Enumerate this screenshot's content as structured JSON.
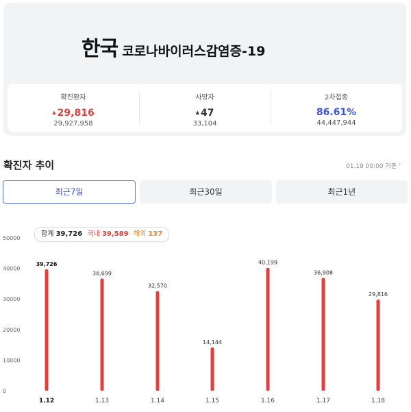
{
  "header": {
    "title_main": "한국",
    "title_sub": "코로나바이러스감염증-19"
  },
  "stats": [
    {
      "label": "확진환자",
      "change": "29,816",
      "total": "29,927,958",
      "color": "#e0413d",
      "arrow": "▲"
    },
    {
      "label": "사망자",
      "change": "47",
      "total": "33,104",
      "color": "#333333",
      "arrow": "▲"
    },
    {
      "label": "2차접종",
      "change": "86.61%",
      "total": "44,447,944",
      "color": "#3d56d6",
      "arrow": ""
    }
  ],
  "section": {
    "title": "확진자 추이",
    "base_time": "01.19 00:00 기준",
    "more_icon": "chevron-right-icon"
  },
  "tabs": [
    {
      "label": "최근7일",
      "active": true
    },
    {
      "label": "최근30일",
      "active": false
    },
    {
      "label": "최근1년",
      "active": false
    }
  ],
  "tooltip": {
    "total_label": "합계",
    "total_value": "39,726",
    "domestic_label": "국내",
    "domestic_value": "39,589",
    "overseas_label": "해외",
    "overseas_value": "137"
  },
  "chart_data": {
    "type": "bar",
    "categories": [
      "1.12",
      "1.13",
      "1.14",
      "1.15",
      "1.16",
      "1.17",
      "1.18"
    ],
    "values": [
      39726,
      36699,
      32570,
      14144,
      40199,
      36908,
      29816
    ],
    "value_labels": [
      "39,726",
      "36,699",
      "32,570",
      "14,144",
      "40,199",
      "36,908",
      "29,816"
    ],
    "yticks": [
      0,
      10000,
      20000,
      30000,
      40000,
      50000
    ],
    "ylim": [
      0,
      50000
    ],
    "highlight_index": 0,
    "bar_color": "#e0413d"
  }
}
